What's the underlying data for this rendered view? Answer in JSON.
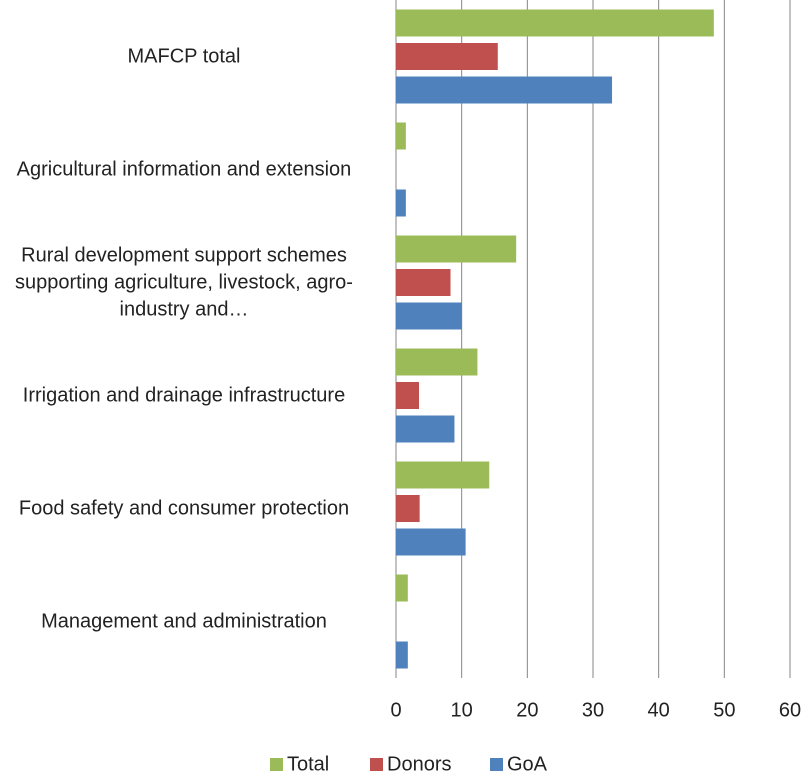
{
  "chart_data": {
    "type": "barh",
    "categories": [
      "MAFCP total",
      "Agricultural information and extension",
      "Rural development support schemes supporting agriculture, livestock, agro-industry and…",
      "Irrigation and drainage infrastructure",
      "Food safety and consumer protection",
      "Management and administration"
    ],
    "series": [
      {
        "name": "Total",
        "color": "#9bbb59",
        "values": [
          48.4,
          1.5,
          18.3,
          12.4,
          14.2,
          1.8
        ]
      },
      {
        "name": "Donors",
        "color": "#c0504d",
        "values": [
          15.5,
          0,
          8.3,
          3.5,
          3.6,
          0
        ]
      },
      {
        "name": "GoA",
        "color": "#4f81bd",
        "values": [
          32.9,
          1.5,
          10,
          8.9,
          10.6,
          1.8
        ]
      }
    ],
    "xlim": [
      0,
      60
    ],
    "xticks": [
      0,
      10,
      20,
      30,
      40,
      50,
      60
    ],
    "grid": true,
    "legend": "bottom"
  }
}
